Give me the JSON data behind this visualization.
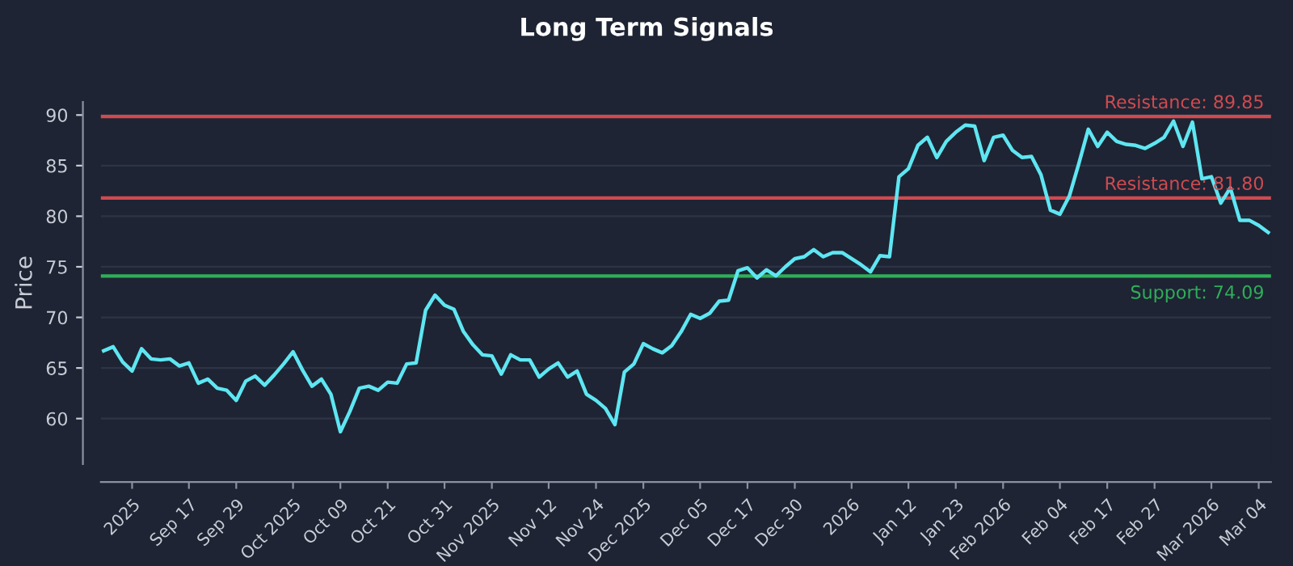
{
  "chart_data": {
    "type": "line",
    "title": "Long Term Signals",
    "ylabel": "Price",
    "categories": [
      null,
      null,
      null,
      "2025",
      null,
      null,
      null,
      null,
      null,
      "Sep 17",
      null,
      null,
      null,
      null,
      "Sep 29",
      null,
      null,
      null,
      null,
      null,
      "Oct 2025",
      null,
      null,
      null,
      null,
      "Oct 09",
      null,
      null,
      null,
      null,
      "Oct 21",
      null,
      null,
      null,
      null,
      null,
      "Oct 31",
      null,
      null,
      null,
      null,
      "Nov 2025",
      null,
      null,
      null,
      null,
      null,
      "Nov 12",
      null,
      null,
      null,
      null,
      "Nov 24",
      null,
      null,
      null,
      null,
      "Dec 2025",
      null,
      null,
      null,
      null,
      null,
      "Dec 05",
      null,
      null,
      null,
      null,
      "Dec 17",
      null,
      null,
      null,
      null,
      "Dec 30",
      null,
      null,
      null,
      null,
      null,
      "2026",
      null,
      null,
      null,
      null,
      null,
      "Jan 12",
      null,
      null,
      null,
      null,
      "Jan 23",
      null,
      null,
      null,
      null,
      "Feb 2026",
      null,
      null,
      null,
      null,
      null,
      "Feb 04",
      null,
      null,
      null,
      null,
      "Feb 17",
      null,
      null,
      null,
      null,
      "Feb 27",
      null,
      null,
      null,
      null,
      null,
      "Mar 2026",
      null,
      null,
      null,
      null,
      "Mar 04",
      null
    ],
    "series": [
      {
        "color": "#5ee6f2",
        "values": [
          66.7,
          67.1,
          65.6,
          64.7,
          66.9,
          65.9,
          65.8,
          65.9,
          65.2,
          65.5,
          63.5,
          63.9,
          63.0,
          62.8,
          61.8,
          63.7,
          64.2,
          63.3,
          64.3,
          65.4,
          66.6,
          64.8,
          63.2,
          63.9,
          62.4,
          58.7,
          60.7,
          63.0,
          63.2,
          62.8,
          63.6,
          63.5,
          65.4,
          65.5,
          70.7,
          72.2,
          71.2,
          70.8,
          68.6,
          67.3,
          66.3,
          66.2,
          64.4,
          66.3,
          65.8,
          65.8,
          64.1,
          64.9,
          65.5,
          64.1,
          64.7,
          62.4,
          61.8,
          61.0,
          59.4,
          64.6,
          65.4,
          67.4,
          66.9,
          66.5,
          67.2,
          68.6,
          70.3,
          69.9,
          70.4,
          71.6,
          71.7,
          74.6,
          74.9,
          73.9,
          74.7,
          74.1,
          75.0,
          75.8,
          76.0,
          76.7,
          76.0,
          76.4,
          76.4,
          75.8,
          75.2,
          74.5,
          76.1,
          76.0,
          83.9,
          84.7,
          87.0,
          87.8,
          85.8,
          87.4,
          88.3,
          89.0,
          88.9,
          85.5,
          87.8,
          88.0,
          86.5,
          85.8,
          85.9,
          84.1,
          80.6,
          80.2,
          82.0,
          85.2,
          88.6,
          86.9,
          88.3,
          87.4,
          87.1,
          87.0,
          86.7,
          87.2,
          87.8,
          89.4,
          86.9,
          89.3,
          83.7,
          83.9,
          81.3,
          82.8,
          79.6,
          79.6,
          79.1,
          78.4
        ]
      }
    ],
    "ylim": [
      55.5,
      91.3
    ],
    "yticks": [
      60,
      65,
      70,
      75,
      80,
      85,
      90
    ],
    "grid": "y",
    "legend": false,
    "marker": "none",
    "line_style": "solid",
    "ref_lines": [
      {
        "axis": "y",
        "value": 89.85,
        "label": "Resistance: 89.85",
        "color": "#d04a50"
      },
      {
        "axis": "y",
        "value": 81.8,
        "label": "Resistance: 81.80",
        "color": "#d04a50"
      },
      {
        "axis": "y",
        "value": 74.09,
        "label": "Support: 74.09",
        "color": "#2fae5a"
      }
    ]
  }
}
